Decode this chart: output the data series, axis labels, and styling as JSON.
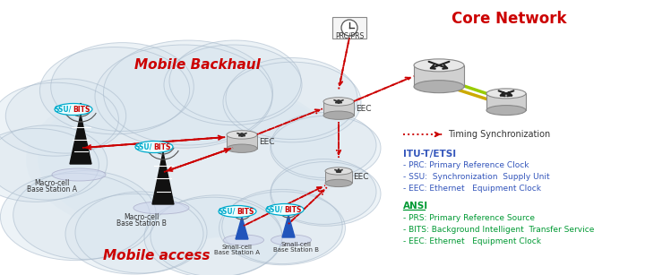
{
  "title_core": "Core Network",
  "title_backhaul": "Mobile Backhaul",
  "title_access": "Mobile access",
  "legend_timing": "Timing Synchronization",
  "itu_title": "ITU-T/ETSI",
  "itu_items": [
    "- PRC: Primary Reference Clock",
    "- SSU:  Synchronization  Supply Unit",
    "- EEC: Ethernet   Equipment Clock"
  ],
  "ansi_title": "ANSI",
  "ansi_items": [
    "- PRS: Primary Reference Source",
    "- BITS: Background Intelligent  Transfer Service",
    "- EEC: Ethernet   Equipment Clock"
  ],
  "label_prc_prs": "PRC/PRS",
  "bg_color": "#ffffff",
  "cloud_color": "#dde8f0",
  "cloud_edge": "#aabbcc",
  "red_arrow": "#cc0000",
  "itu_color": "#3355bb",
  "ansi_color": "#009933",
  "core_title_color": "#cc0000",
  "backhaul_color": "#cc0000",
  "access_color": "#cc0000",
  "ssu_color": "#00aacc",
  "bits_color": "#cc0000",
  "router_gray": "#c8c8c8",
  "router_edge": "#888888",
  "cable_green": "#99cc00",
  "cable_yellow": "#ccaa00"
}
